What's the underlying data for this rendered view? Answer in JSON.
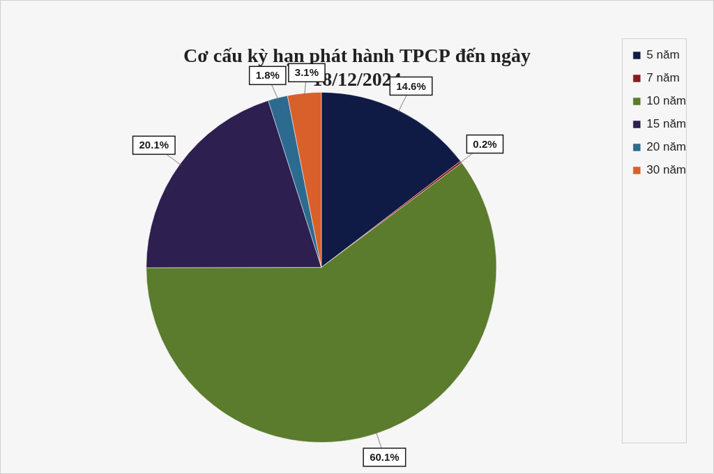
{
  "chart_data": {
    "type": "pie",
    "title": [
      "Cơ cấu kỳ hạn phát hành TPCP đến ngày",
      "18/12/2024"
    ],
    "categories": [
      "5 năm",
      "7 năm",
      "10 năm",
      "15 năm",
      "20 năm",
      "30 năm"
    ],
    "values": [
      14.6,
      0.2,
      60.1,
      20.1,
      1.8,
      3.1
    ],
    "value_labels": [
      "14.6%",
      "0.2%",
      "60.1%",
      "20.1%",
      "1.8%",
      "3.1%"
    ],
    "colors": [
      "#0f1a45",
      "#8b1c1c",
      "#5b7b2d",
      "#2d1f50",
      "#2d6a8f",
      "#d8602b"
    ],
    "legend": "right",
    "data_labels": true
  }
}
